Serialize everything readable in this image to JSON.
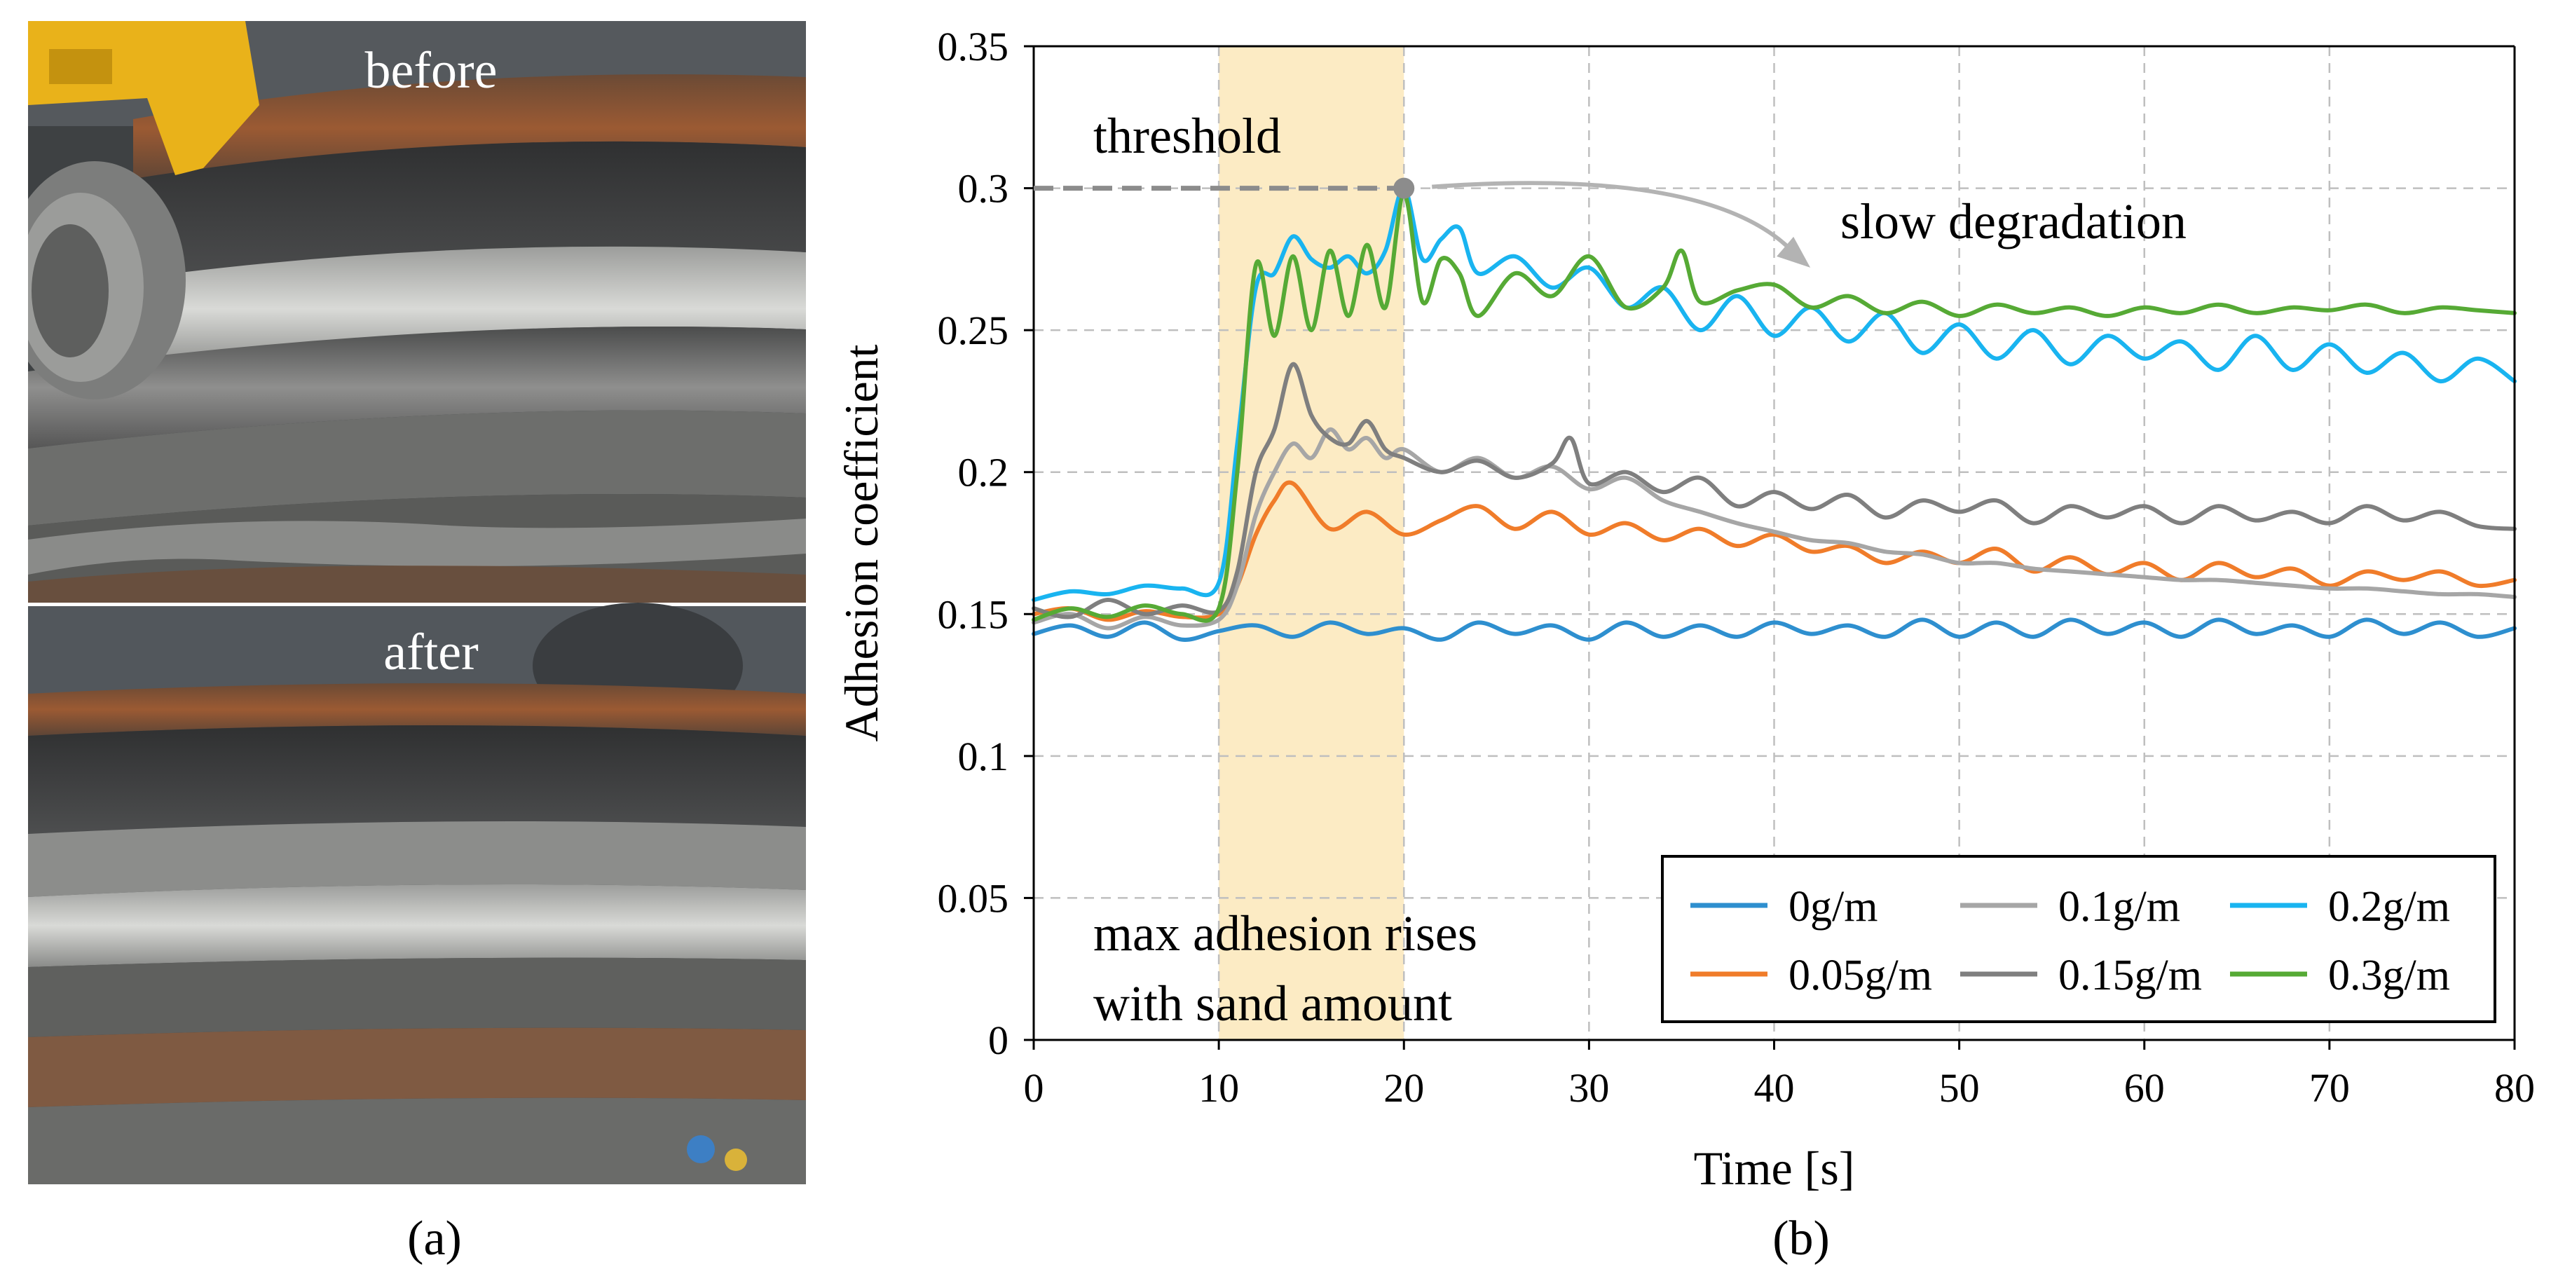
{
  "panel_a": {
    "before_label": "before",
    "after_label": "after",
    "caption": "(a)"
  },
  "panel_b": {
    "caption": "(b)"
  },
  "colors": {
    "0g/m": "#2E8FCF",
    "0.05g/m": "#F07C2A",
    "0.1g/m": "#A6A6A6",
    "0.15g/m": "#7F7F7F",
    "0.2g/m": "#19B4F0",
    "0.3g/m": "#56AA35",
    "highlight": "#FCEBC4",
    "threshold": "#8C8C8C"
  },
  "chart_data": {
    "type": "line",
    "xlabel": "Time [s]",
    "ylabel": "Adhesion coefficient",
    "xlim": [
      0,
      80
    ],
    "ylim": [
      0,
      0.35
    ],
    "xticks": [
      0,
      10,
      20,
      30,
      40,
      50,
      60,
      70,
      80
    ],
    "xtick_labels": [
      "0",
      "10",
      "20",
      "30",
      "40",
      "50",
      "60",
      "70",
      "80"
    ],
    "yticks": [
      0,
      0.05,
      0.1,
      0.15,
      0.2,
      0.25,
      0.3,
      0.35
    ],
    "ytick_labels": [
      "0",
      "0.05",
      "0.1",
      "0.15",
      "0.2",
      "0.25",
      "0.3",
      "0.35"
    ],
    "grid": true,
    "legend_position": "bottom-right",
    "sanding_interval": [
      10,
      20
    ],
    "threshold": {
      "value": 0.3,
      "x_end": 20,
      "label": "threshold"
    },
    "annotations": {
      "slow_degradation": "slow degradation",
      "max_adhesion_line1": "max adhesion rises",
      "max_adhesion_line2": "with sand amount"
    },
    "series": [
      {
        "name": "0g/m",
        "x": [
          0,
          2,
          4,
          6,
          8,
          10,
          12,
          14,
          16,
          18,
          20,
          22,
          24,
          26,
          28,
          30,
          32,
          34,
          36,
          38,
          40,
          42,
          44,
          46,
          48,
          50,
          52,
          54,
          56,
          58,
          60,
          62,
          64,
          66,
          68,
          70,
          72,
          74,
          76,
          78,
          80
        ],
        "values": [
          0.143,
          0.146,
          0.142,
          0.147,
          0.141,
          0.144,
          0.146,
          0.142,
          0.147,
          0.143,
          0.145,
          0.141,
          0.147,
          0.143,
          0.146,
          0.141,
          0.147,
          0.142,
          0.146,
          0.142,
          0.147,
          0.143,
          0.146,
          0.142,
          0.148,
          0.142,
          0.147,
          0.142,
          0.148,
          0.143,
          0.147,
          0.142,
          0.148,
          0.143,
          0.146,
          0.142,
          0.148,
          0.143,
          0.147,
          0.142,
          0.145
        ]
      },
      {
        "name": "0.05g/m",
        "x": [
          0,
          2,
          4,
          6,
          8,
          10,
          11,
          12,
          13,
          14,
          16,
          18,
          20,
          22,
          24,
          26,
          28,
          30,
          32,
          34,
          36,
          38,
          40,
          42,
          44,
          46,
          48,
          50,
          52,
          54,
          56,
          58,
          60,
          62,
          64,
          66,
          68,
          70,
          72,
          74,
          76,
          78,
          80
        ],
        "values": [
          0.15,
          0.152,
          0.148,
          0.151,
          0.149,
          0.15,
          0.16,
          0.178,
          0.19,
          0.196,
          0.18,
          0.186,
          0.178,
          0.183,
          0.188,
          0.18,
          0.186,
          0.178,
          0.182,
          0.176,
          0.18,
          0.174,
          0.178,
          0.172,
          0.174,
          0.168,
          0.172,
          0.168,
          0.173,
          0.165,
          0.17,
          0.164,
          0.168,
          0.162,
          0.168,
          0.163,
          0.166,
          0.16,
          0.165,
          0.162,
          0.165,
          0.16,
          0.162
        ]
      },
      {
        "name": "0.1g/m",
        "x": [
          0,
          2,
          4,
          6,
          8,
          10,
          11,
          12,
          13,
          14,
          15,
          16,
          17,
          18,
          19,
          20,
          22,
          24,
          26,
          28,
          30,
          32,
          34,
          36,
          38,
          40,
          42,
          44,
          46,
          48,
          50,
          52,
          54,
          56,
          58,
          60,
          62,
          64,
          66,
          68,
          70,
          72,
          74,
          76,
          78,
          80
        ],
        "values": [
          0.147,
          0.15,
          0.145,
          0.149,
          0.146,
          0.148,
          0.16,
          0.185,
          0.2,
          0.21,
          0.205,
          0.215,
          0.208,
          0.212,
          0.205,
          0.208,
          0.2,
          0.205,
          0.198,
          0.202,
          0.194,
          0.198,
          0.19,
          0.186,
          0.182,
          0.179,
          0.176,
          0.175,
          0.172,
          0.171,
          0.168,
          0.168,
          0.166,
          0.165,
          0.164,
          0.163,
          0.162,
          0.162,
          0.161,
          0.16,
          0.159,
          0.159,
          0.158,
          0.157,
          0.157,
          0.156
        ]
      },
      {
        "name": "0.15g/m",
        "x": [
          0,
          2,
          4,
          6,
          8,
          10,
          11,
          12,
          13,
          14,
          15,
          16,
          17,
          18,
          19,
          20,
          22,
          24,
          26,
          28,
          29,
          30,
          32,
          34,
          36,
          38,
          40,
          42,
          44,
          46,
          48,
          50,
          52,
          54,
          56,
          58,
          60,
          62,
          64,
          66,
          68,
          70,
          72,
          74,
          76,
          78,
          80
        ],
        "values": [
          0.152,
          0.149,
          0.155,
          0.15,
          0.153,
          0.151,
          0.165,
          0.2,
          0.215,
          0.238,
          0.22,
          0.212,
          0.21,
          0.218,
          0.208,
          0.205,
          0.2,
          0.204,
          0.198,
          0.203,
          0.212,
          0.196,
          0.2,
          0.193,
          0.198,
          0.188,
          0.193,
          0.187,
          0.192,
          0.184,
          0.19,
          0.186,
          0.19,
          0.182,
          0.188,
          0.184,
          0.188,
          0.182,
          0.188,
          0.183,
          0.186,
          0.182,
          0.188,
          0.183,
          0.186,
          0.181,
          0.18
        ]
      },
      {
        "name": "0.2g/m",
        "x": [
          0,
          2,
          4,
          6,
          8,
          10,
          11,
          12,
          13,
          14,
          15,
          16,
          17,
          18,
          19,
          20,
          21,
          22,
          23,
          24,
          26,
          28,
          30,
          32,
          34,
          36,
          38,
          40,
          42,
          44,
          46,
          48,
          50,
          52,
          54,
          56,
          58,
          60,
          62,
          64,
          66,
          68,
          70,
          72,
          74,
          76,
          78,
          80
        ],
        "values": [
          0.155,
          0.158,
          0.157,
          0.16,
          0.159,
          0.161,
          0.21,
          0.265,
          0.27,
          0.283,
          0.275,
          0.272,
          0.276,
          0.27,
          0.278,
          0.3,
          0.275,
          0.282,
          0.286,
          0.27,
          0.276,
          0.265,
          0.272,
          0.258,
          0.265,
          0.25,
          0.262,
          0.248,
          0.258,
          0.246,
          0.256,
          0.242,
          0.252,
          0.24,
          0.25,
          0.238,
          0.248,
          0.24,
          0.246,
          0.236,
          0.248,
          0.236,
          0.245,
          0.235,
          0.242,
          0.232,
          0.24,
          0.232
        ]
      },
      {
        "name": "0.3g/m",
        "x": [
          0,
          2,
          4,
          6,
          8,
          10,
          11,
          12,
          13,
          14,
          15,
          16,
          17,
          18,
          19,
          20,
          21,
          22,
          23,
          24,
          26,
          28,
          30,
          32,
          34,
          35,
          36,
          38,
          40,
          42,
          44,
          46,
          48,
          50,
          52,
          54,
          56,
          58,
          60,
          62,
          64,
          66,
          68,
          70,
          72,
          74,
          76,
          78,
          80
        ],
        "values": [
          0.148,
          0.152,
          0.149,
          0.153,
          0.15,
          0.152,
          0.2,
          0.273,
          0.248,
          0.276,
          0.25,
          0.278,
          0.255,
          0.28,
          0.258,
          0.298,
          0.26,
          0.275,
          0.27,
          0.255,
          0.27,
          0.262,
          0.276,
          0.258,
          0.265,
          0.278,
          0.26,
          0.264,
          0.266,
          0.258,
          0.262,
          0.256,
          0.26,
          0.255,
          0.259,
          0.256,
          0.258,
          0.255,
          0.258,
          0.256,
          0.259,
          0.256,
          0.258,
          0.257,
          0.259,
          0.256,
          0.258,
          0.257,
          0.256
        ]
      }
    ]
  }
}
